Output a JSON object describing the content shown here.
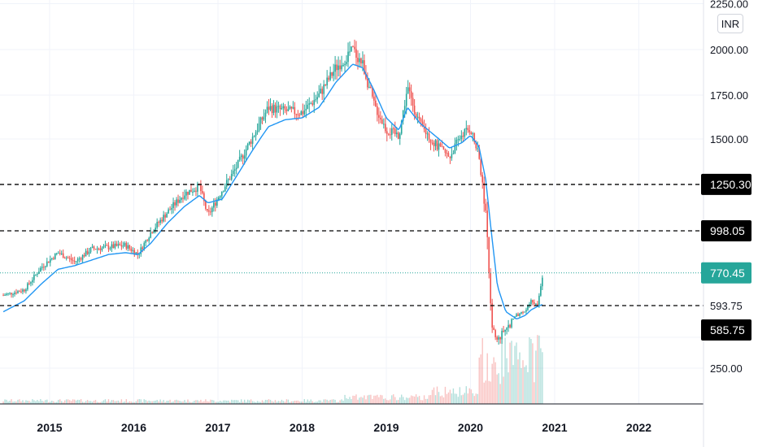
{
  "currency_label": "INR",
  "chart_data": {
    "type": "candlestick",
    "price_axis": {
      "ticks": [
        {
          "value": 2250,
          "label": "2250.00"
        },
        {
          "value": 2000,
          "label": "2000.00"
        },
        {
          "value": 1750,
          "label": "1750.00"
        },
        {
          "value": 1500,
          "label": "1500.00"
        },
        {
          "value": 250,
          "label": "250.00"
        }
      ],
      "ylim": [
        150,
        2270
      ]
    },
    "time_axis": {
      "labels": [
        "2015",
        "2016",
        "2017",
        "2018",
        "2019",
        "2020",
        "2021",
        "2022"
      ],
      "xlim": [
        2014.45,
        2022.7
      ]
    },
    "horizontal_levels": [
      {
        "value": 1250.3,
        "label": "1250.30",
        "style": "dashed",
        "color": "#000000"
      },
      {
        "value": 998.05,
        "label": "998.05",
        "style": "dashed",
        "color": "#000000"
      },
      {
        "value": 593.75,
        "label": "593.75",
        "style": "dashed",
        "color": "#000000"
      }
    ],
    "last_price": {
      "value": 770.45,
      "label": "770.45",
      "color": "#26a69a"
    },
    "extra_label": {
      "value": 585.75,
      "label": "585.75"
    },
    "price_path": [
      [
        2014.45,
        650
      ],
      [
        2014.7,
        680
      ],
      [
        2014.9,
        800
      ],
      [
        2015.1,
        880
      ],
      [
        2015.3,
        830
      ],
      [
        2015.5,
        900
      ],
      [
        2015.7,
        910
      ],
      [
        2015.9,
        920
      ],
      [
        2016.05,
        870
      ],
      [
        2016.2,
        990
      ],
      [
        2016.4,
        1100
      ],
      [
        2016.6,
        1200
      ],
      [
        2016.78,
        1240
      ],
      [
        2016.88,
        1080
      ],
      [
        2017.05,
        1220
      ],
      [
        2017.2,
        1330
      ],
      [
        2017.4,
        1500
      ],
      [
        2017.6,
        1680
      ],
      [
        2017.8,
        1660
      ],
      [
        2018.0,
        1650
      ],
      [
        2018.2,
        1750
      ],
      [
        2018.4,
        1900
      ],
      [
        2018.6,
        2000
      ],
      [
        2018.72,
        1920
      ],
      [
        2018.85,
        1700
      ],
      [
        2019.0,
        1550
      ],
      [
        2019.15,
        1520
      ],
      [
        2019.25,
        1790
      ],
      [
        2019.4,
        1580
      ],
      [
        2019.6,
        1460
      ],
      [
        2019.75,
        1400
      ],
      [
        2019.9,
        1530
      ],
      [
        2020.0,
        1560
      ],
      [
        2020.1,
        1400
      ],
      [
        2020.18,
        1100
      ],
      [
        2020.25,
        500
      ],
      [
        2020.32,
        400
      ],
      [
        2020.42,
        470
      ],
      [
        2020.55,
        540
      ],
      [
        2020.65,
        560
      ],
      [
        2020.72,
        620
      ],
      [
        2020.8,
        600
      ],
      [
        2020.86,
        770
      ]
    ],
    "ma_path": [
      [
        2014.45,
        560
      ],
      [
        2014.7,
        620
      ],
      [
        2014.9,
        710
      ],
      [
        2015.1,
        790
      ],
      [
        2015.3,
        810
      ],
      [
        2015.5,
        840
      ],
      [
        2015.7,
        870
      ],
      [
        2015.9,
        880
      ],
      [
        2016.05,
        870
      ],
      [
        2016.2,
        930
      ],
      [
        2016.4,
        1040
      ],
      [
        2016.6,
        1130
      ],
      [
        2016.78,
        1190
      ],
      [
        2016.88,
        1150
      ],
      [
        2017.05,
        1170
      ],
      [
        2017.2,
        1280
      ],
      [
        2017.4,
        1430
      ],
      [
        2017.6,
        1570
      ],
      [
        2017.8,
        1610
      ],
      [
        2018.0,
        1620
      ],
      [
        2018.2,
        1680
      ],
      [
        2018.4,
        1820
      ],
      [
        2018.6,
        1920
      ],
      [
        2018.72,
        1900
      ],
      [
        2018.85,
        1780
      ],
      [
        2019.0,
        1620
      ],
      [
        2019.15,
        1550
      ],
      [
        2019.25,
        1680
      ],
      [
        2019.4,
        1590
      ],
      [
        2019.6,
        1510
      ],
      [
        2019.75,
        1450
      ],
      [
        2019.9,
        1480
      ],
      [
        2020.0,
        1520
      ],
      [
        2020.1,
        1460
      ],
      [
        2020.18,
        1280
      ],
      [
        2020.25,
        980
      ],
      [
        2020.32,
        700
      ],
      [
        2020.42,
        560
      ],
      [
        2020.55,
        520
      ],
      [
        2020.65,
        540
      ],
      [
        2020.72,
        570
      ],
      [
        2020.8,
        590
      ],
      [
        2020.86,
        600
      ]
    ],
    "colors": {
      "up": "#26a69a",
      "down": "#ef5350",
      "ma": "#2196f3",
      "grid": "#f0f3fa",
      "axis": "#131722",
      "label_bg": "#000000"
    }
  }
}
